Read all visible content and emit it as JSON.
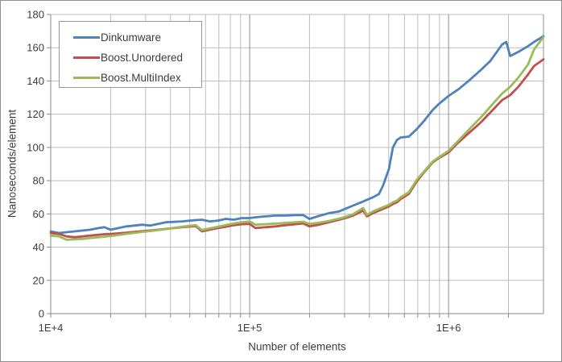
{
  "figure": {
    "background": "#ffffff",
    "border_color": "#8e8e8e"
  },
  "chart_data": {
    "type": "line",
    "title": "",
    "xlabel": "Number of elements",
    "ylabel": "Nanoseconds/element",
    "x_scale": "log",
    "xlim": [
      10000,
      3000000
    ],
    "ylim": [
      0,
      180
    ],
    "grid": true,
    "legend_position": "top-left",
    "y_ticks": [
      0,
      20,
      40,
      60,
      80,
      100,
      120,
      140,
      160,
      180
    ],
    "x_tick_labels": [
      {
        "value": 10000,
        "label": "1E+4"
      },
      {
        "value": 100000,
        "label": "1E+5"
      },
      {
        "value": 1000000,
        "label": "1E+6"
      }
    ],
    "x_minor_gridlines": [
      20000,
      30000,
      40000,
      50000,
      60000,
      70000,
      80000,
      90000,
      200000,
      300000,
      400000,
      500000,
      600000,
      700000,
      800000,
      900000,
      2000000
    ],
    "x_major_gridlines": [
      100000,
      1000000
    ],
    "colors": {
      "grid": "#bdbdbd",
      "major_grid": "#8f8f8f",
      "axis": "#8a8a8a",
      "text": "#3d3d3d"
    },
    "x": [
      10000,
      11000,
      12000,
      13200,
      14500,
      15800,
      17400,
      18600,
      20000,
      21900,
      24000,
      26300,
      28800,
      31600,
      34700,
      38000,
      41700,
      45700,
      50100,
      53700,
      57500,
      63100,
      69200,
      75900,
      83200,
      91200,
      100000,
      107000,
      120000,
      135000,
      151000,
      170000,
      186000,
      200000,
      219000,
      251000,
      282000,
      302000,
      331000,
      372000,
      389000,
      417000,
      447000,
      468000,
      501000,
      525000,
      550000,
      575000,
      631000,
      692000,
      759000,
      832000,
      891000,
      1000000,
      1120000,
      1260000,
      1450000,
      1620000,
      1860000,
      1950000,
      2040000,
      2240000,
      2510000,
      2690000,
      3000000
    ],
    "series": [
      {
        "id": "dinkumware",
        "name": "Dinkumware",
        "color": "#4f81bd",
        "values": [
          49.5,
          48.5,
          49,
          49.5,
          50,
          50.5,
          51.5,
          52,
          50.5,
          51.5,
          52.5,
          53,
          53.5,
          53,
          54,
          55,
          55.2,
          55.5,
          56,
          56.3,
          56.5,
          55.5,
          56,
          57,
          56.5,
          57.5,
          57.5,
          58,
          58.5,
          59,
          59,
          59.3,
          59.3,
          57,
          58.5,
          60.5,
          61.5,
          63,
          65,
          67.5,
          68.5,
          70,
          72,
          77,
          87,
          100,
          104.5,
          106,
          106.5,
          111,
          116.5,
          122.5,
          126,
          131,
          135,
          140,
          146.5,
          152,
          162,
          163.5,
          155,
          157.5,
          161,
          163.5,
          167
        ]
      },
      {
        "id": "boost-unordered",
        "name": "Boost.Unordered",
        "color": "#c0504d",
        "values": [
          48.5,
          48,
          46.5,
          46,
          46.5,
          47,
          47.5,
          47.8,
          48,
          48.3,
          48.7,
          49.2,
          49.6,
          50,
          50.5,
          51,
          51.5,
          52,
          52.4,
          52.6,
          49.5,
          50.5,
          51.5,
          52.3,
          53.2,
          53.8,
          54,
          51.5,
          52,
          52.5,
          53.2,
          53.8,
          54.3,
          52.5,
          53.3,
          55,
          56.5,
          57.5,
          59,
          62,
          58.5,
          60.5,
          62,
          63,
          64.5,
          66,
          67,
          69,
          72,
          79.5,
          85.5,
          91,
          93.5,
          97,
          103,
          108.5,
          115,
          121,
          128.5,
          130,
          131.5,
          136.5,
          144,
          149,
          153
        ]
      },
      {
        "id": "boost-multiindex",
        "name": "Boost.MultiIndex",
        "color": "#9bbb59",
        "values": [
          47,
          46.5,
          44.5,
          44.7,
          45,
          45.5,
          46,
          46.3,
          46.7,
          47.3,
          48,
          48.6,
          49.2,
          49.7,
          50.3,
          50.9,
          51.6,
          52.3,
          52.9,
          53.2,
          50.3,
          51.3,
          52.3,
          53.3,
          54.2,
          55,
          55.5,
          53.5,
          53.8,
          54.2,
          54.6,
          55,
          55.3,
          54,
          54.6,
          55.8,
          57.2,
          58.2,
          59.8,
          63.5,
          59.5,
          61.5,
          63,
          64,
          65.5,
          67,
          68,
          70,
          73,
          80.5,
          86,
          91.5,
          94,
          98,
          104,
          110.5,
          118,
          124.5,
          132.5,
          134.5,
          136.5,
          142,
          150,
          159,
          166.5
        ]
      }
    ]
  }
}
